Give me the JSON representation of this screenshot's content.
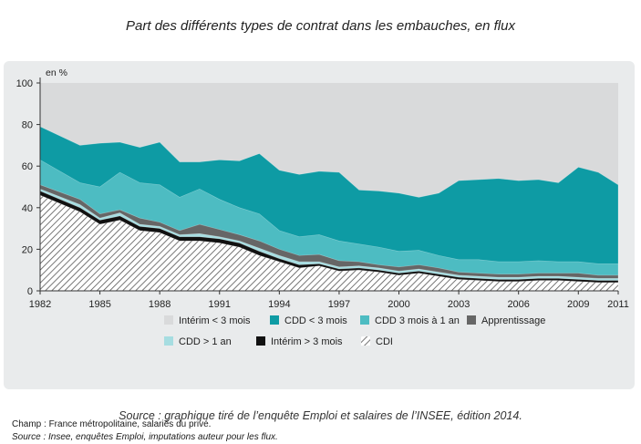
{
  "page": {
    "title": "Part des différents types de contrat dans les embauches, en flux",
    "notes": {
      "champ": "Champ : France métropolitaine, salariés du privé.",
      "source": "Source : Insee, enquêtes Emploi, imputations auteur pour les flux."
    },
    "caption": "Source : graphique tiré de l’enquête Emploi et salaires de l’INSEE, édition 2014."
  },
  "chart_data": {
    "type": "area",
    "stacked": true,
    "unit_label": "en %",
    "xlim": [
      1982,
      2011
    ],
    "ylim": [
      0,
      100
    ],
    "x_ticks": [
      1982,
      1985,
      1988,
      1991,
      1994,
      1997,
      2000,
      2003,
      2006,
      2009,
      2011
    ],
    "y_ticks": [
      0,
      20,
      40,
      60,
      80,
      100
    ],
    "x": [
      1982,
      1984,
      1985,
      1986,
      1987,
      1988,
      1989,
      1990,
      1991,
      1992,
      1993,
      1994,
      1995,
      1996,
      1997,
      1998,
      1999,
      2000,
      2001,
      2002,
      2003,
      2004,
      2005,
      2006,
      2007,
      2008,
      2009,
      2010,
      2011
    ],
    "cumulative_boundaries": {
      "cdi": [
        46,
        38,
        32,
        34,
        29,
        28,
        24,
        24,
        23,
        21,
        17,
        14,
        11,
        12,
        9.5,
        10,
        9,
        7.5,
        8.5,
        7,
        5.5,
        5,
        4.5,
        4.5,
        5,
        5,
        4.5,
        4,
        4
      ],
      "interim_gt3": [
        48,
        40,
        34,
        36,
        31,
        30,
        26,
        26,
        25,
        23,
        19,
        15.5,
        12.5,
        13,
        10.5,
        11,
        10,
        8.5,
        9.5,
        8,
        6.5,
        6,
        5.5,
        5.5,
        6,
        6,
        5.5,
        5,
        5
      ],
      "cdd_gt1": [
        49,
        41.5,
        35,
        37.5,
        32,
        31,
        27,
        27.5,
        26,
        24,
        20.5,
        17,
        14,
        14,
        11.5,
        12,
        11,
        9.5,
        10.5,
        9,
        7.5,
        7,
        6.5,
        6.5,
        7,
        7,
        6.5,
        6,
        6
      ],
      "apprentissage": [
        51,
        44,
        37,
        39,
        35,
        33,
        29,
        32,
        29.5,
        27,
        24,
        20,
        17,
        17.5,
        14.5,
        14,
        12.5,
        11.5,
        12.5,
        11,
        9,
        8.5,
        8,
        8,
        8.5,
        8.5,
        8.5,
        7.5,
        7.5
      ],
      "cdd_3m_1a": [
        63,
        52,
        50,
        57,
        52,
        51,
        45,
        49,
        44,
        40,
        37,
        29,
        26,
        27,
        24,
        22.5,
        21,
        19,
        19.5,
        17,
        15,
        15,
        14,
        14,
        14.5,
        14,
        14,
        13,
        13
      ],
      "cdd_lt3": [
        79,
        70,
        71,
        71.5,
        69,
        71.5,
        62,
        62,
        63,
        62.5,
        66,
        58,
        56,
        57.5,
        57,
        48.5,
        48,
        47,
        45,
        47,
        53,
        53.5,
        54,
        53,
        53.5,
        52,
        59.5,
        57,
        51
      ],
      "interim_lt3": [
        100,
        100,
        100,
        100,
        100,
        100,
        100,
        100,
        100,
        100,
        100,
        100,
        100,
        100,
        100,
        100,
        100,
        100,
        100,
        100,
        100,
        100,
        100,
        100,
        100,
        100,
        100,
        100,
        100
      ]
    },
    "series": [
      {
        "key": "interim_lt3",
        "name": "Intérim < 3 mois",
        "color": "#d9dadb"
      },
      {
        "key": "cdd_lt3",
        "name": "CDD < 3 mois",
        "color": "#0e9ba4"
      },
      {
        "key": "cdd_3m_1a",
        "name": "CDD 3 mois à 1 an",
        "color": "#4dbcc2"
      },
      {
        "key": "apprentissage",
        "name": "Apprentissage",
        "color": "#666666"
      },
      {
        "key": "cdd_gt1",
        "name": "CDD > 1 an",
        "color": "#a6dde1"
      },
      {
        "key": "interim_gt3",
        "name": "Intérim > 3 mois",
        "color": "#111111"
      },
      {
        "key": "cdi",
        "name": "CDI",
        "color": "hatch"
      }
    ],
    "legend_position": "bottom",
    "grid": false
  }
}
